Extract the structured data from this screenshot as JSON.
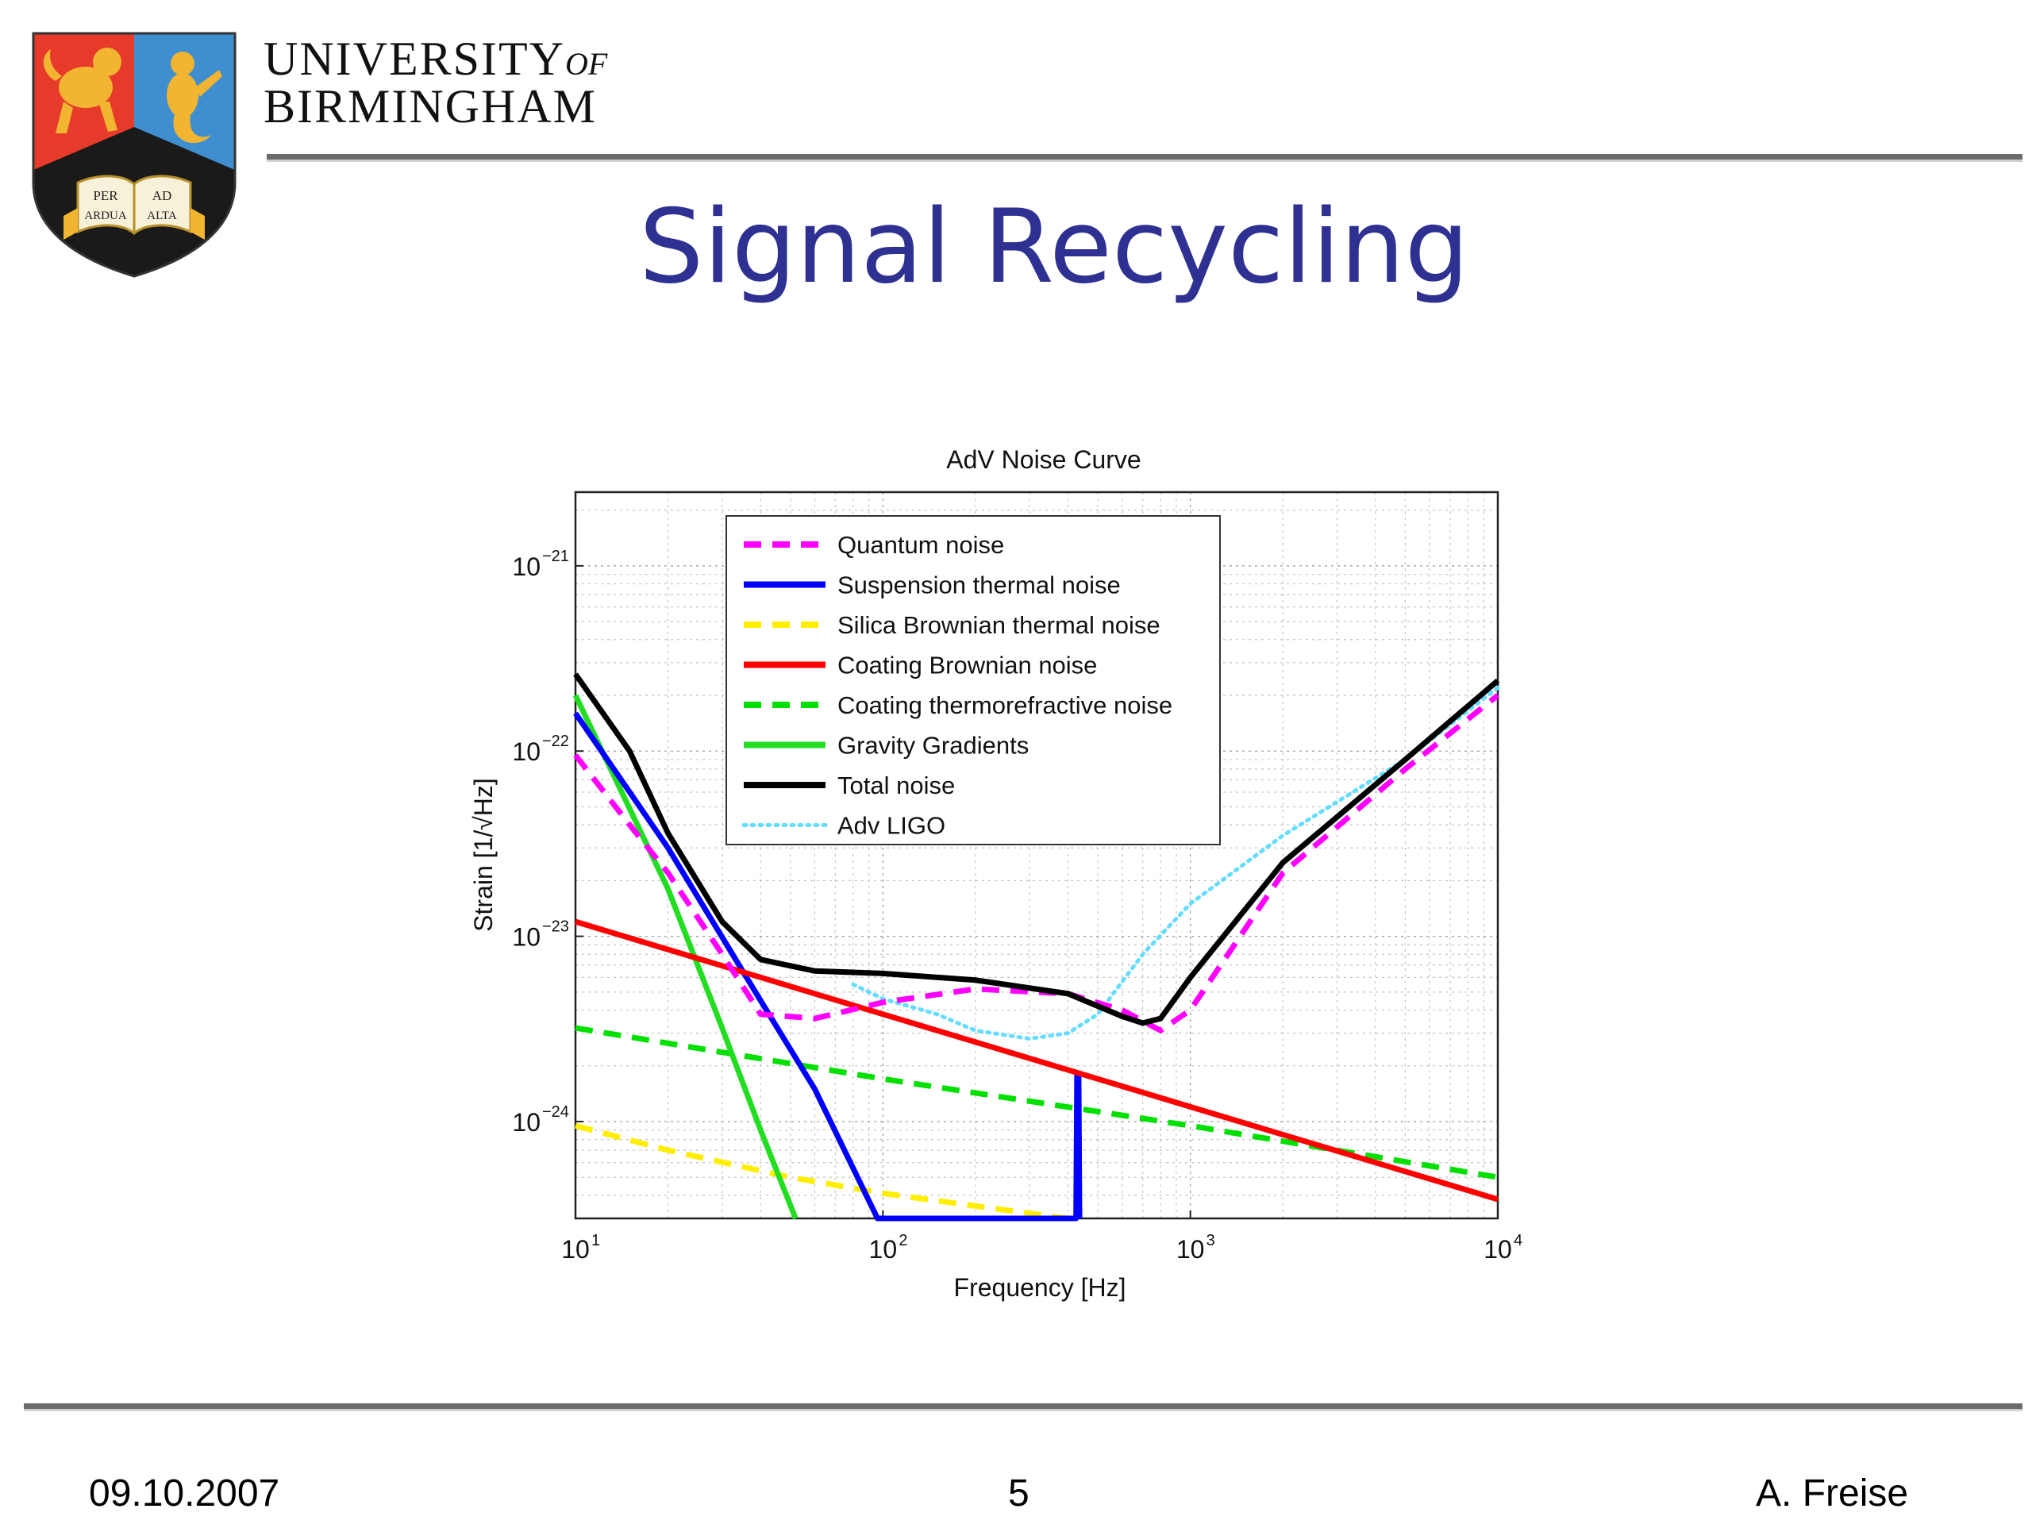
{
  "header": {
    "university_line1": "UNIVERSITY",
    "university_of": "OF",
    "university_line2": "BIRMINGHAM",
    "crest_motto": [
      "PER",
      "AD",
      "ARDUA",
      "ALTA"
    ],
    "crest_colors": {
      "left": "#e63a2a",
      "right": "#3f8fd0",
      "gold": "#f2b531",
      "shield_bottom": "#1a1a1a"
    }
  },
  "slide": {
    "title": "Signal Recycling"
  },
  "footer": {
    "date": "09.10.2007",
    "page": "5",
    "author": "A. Freise"
  },
  "chart_data": {
    "type": "line",
    "title": "AdV Noise Curve",
    "xlabel": "Frequency [Hz]",
    "ylabel": "Strain [1/√Hz]",
    "x_scale": "log",
    "y_scale": "log",
    "xlim": [
      10,
      10000
    ],
    "ylim": [
      3e-25,
      2.5e-21
    ],
    "x_ticks": [
      {
        "base": "10",
        "exp": "1",
        "value": 10
      },
      {
        "base": "10",
        "exp": "2",
        "value": 100
      },
      {
        "base": "10",
        "exp": "3",
        "value": 1000
      },
      {
        "base": "10",
        "exp": "4",
        "value": 10000
      }
    ],
    "y_ticks": [
      {
        "base": "10",
        "exp": "−21",
        "value": 1e-21
      },
      {
        "base": "10",
        "exp": "−22",
        "value": 1e-22
      },
      {
        "base": "10",
        "exp": "−23",
        "value": 1e-23
      },
      {
        "base": "10",
        "exp": "−24",
        "value": 1e-24
      }
    ],
    "grid": true,
    "legend_position": "top-center",
    "series": [
      {
        "name": "Quantum noise",
        "color": "#ff00ff",
        "style": "dashed",
        "x": [
          10,
          15,
          20,
          30,
          40,
          60,
          100,
          200,
          400,
          600,
          800,
          1000,
          2000,
          5000,
          10000
        ],
        "y": [
          9.5e-23,
          4e-23,
          2.2e-23,
          8e-24,
          3.8e-24,
          3.6e-24,
          4.4e-24,
          5.2e-24,
          4.9e-24,
          4e-24,
          3.1e-24,
          4e-24,
          2.2e-23,
          8e-23,
          2e-22
        ]
      },
      {
        "name": "Suspension thermal noise",
        "color": "#0000ff",
        "style": "solid",
        "x": [
          10,
          20,
          40,
          60,
          96,
          425,
          428,
          433,
          436
        ],
        "y": [
          1.6e-22,
          3e-23,
          4.5e-24,
          1.5e-24,
          3e-25,
          3e-25,
          1.8e-24,
          1.8e-24,
          3e-25
        ]
      },
      {
        "name": "Silica Brownian thermal noise",
        "color": "#ffee00",
        "style": "dashed",
        "x": [
          10,
          20,
          50,
          100,
          200,
          400,
          420
        ],
        "y": [
          9.5e-25,
          7e-25,
          5e-25,
          4.1e-25,
          3.5e-25,
          3e-25,
          3e-25
        ]
      },
      {
        "name": "Coating Brownian noise",
        "color": "#ff0000",
        "style": "solid",
        "x": [
          10,
          10000
        ],
        "y": [
          1.2e-23,
          3.8e-25
        ]
      },
      {
        "name": "Coating thermorefractive noise",
        "color": "#00e000",
        "style": "dashed",
        "x": [
          10,
          100,
          1000,
          10000
        ],
        "y": [
          3.2e-24,
          1.7e-24,
          9.5e-25,
          5e-25
        ]
      },
      {
        "name": "Gravity Gradients",
        "color": "#22dd22",
        "style": "solid",
        "x": [
          10,
          20,
          30,
          40,
          52
        ],
        "y": [
          2e-22,
          1.8e-23,
          3.2e-24,
          9e-25,
          3e-25
        ]
      },
      {
        "name": "Total noise",
        "color": "#000000",
        "style": "solid",
        "x": [
          10,
          15,
          20,
          30,
          40,
          60,
          100,
          200,
          400,
          600,
          700,
          800,
          1000,
          2000,
          5000,
          10000
        ],
        "y": [
          2.6e-22,
          1e-22,
          3.6e-23,
          1.2e-23,
          7.5e-24,
          6.5e-24,
          6.3e-24,
          5.8e-24,
          4.9e-24,
          3.7e-24,
          3.4e-24,
          3.6e-24,
          6e-24,
          2.5e-23,
          9e-23,
          2.4e-22
        ]
      },
      {
        "name": "Adv LIGO",
        "color": "#66ddff",
        "style": "dotted",
        "x": [
          80,
          100,
          150,
          200,
          300,
          400,
          500,
          700,
          1000,
          2000,
          5000,
          10000
        ],
        "y": [
          5.5e-24,
          4.6e-24,
          3.8e-24,
          3.1e-24,
          2.8e-24,
          3e-24,
          3.8e-24,
          8e-24,
          1.5e-23,
          3.5e-23,
          9e-23,
          2.2e-22
        ]
      }
    ]
  }
}
